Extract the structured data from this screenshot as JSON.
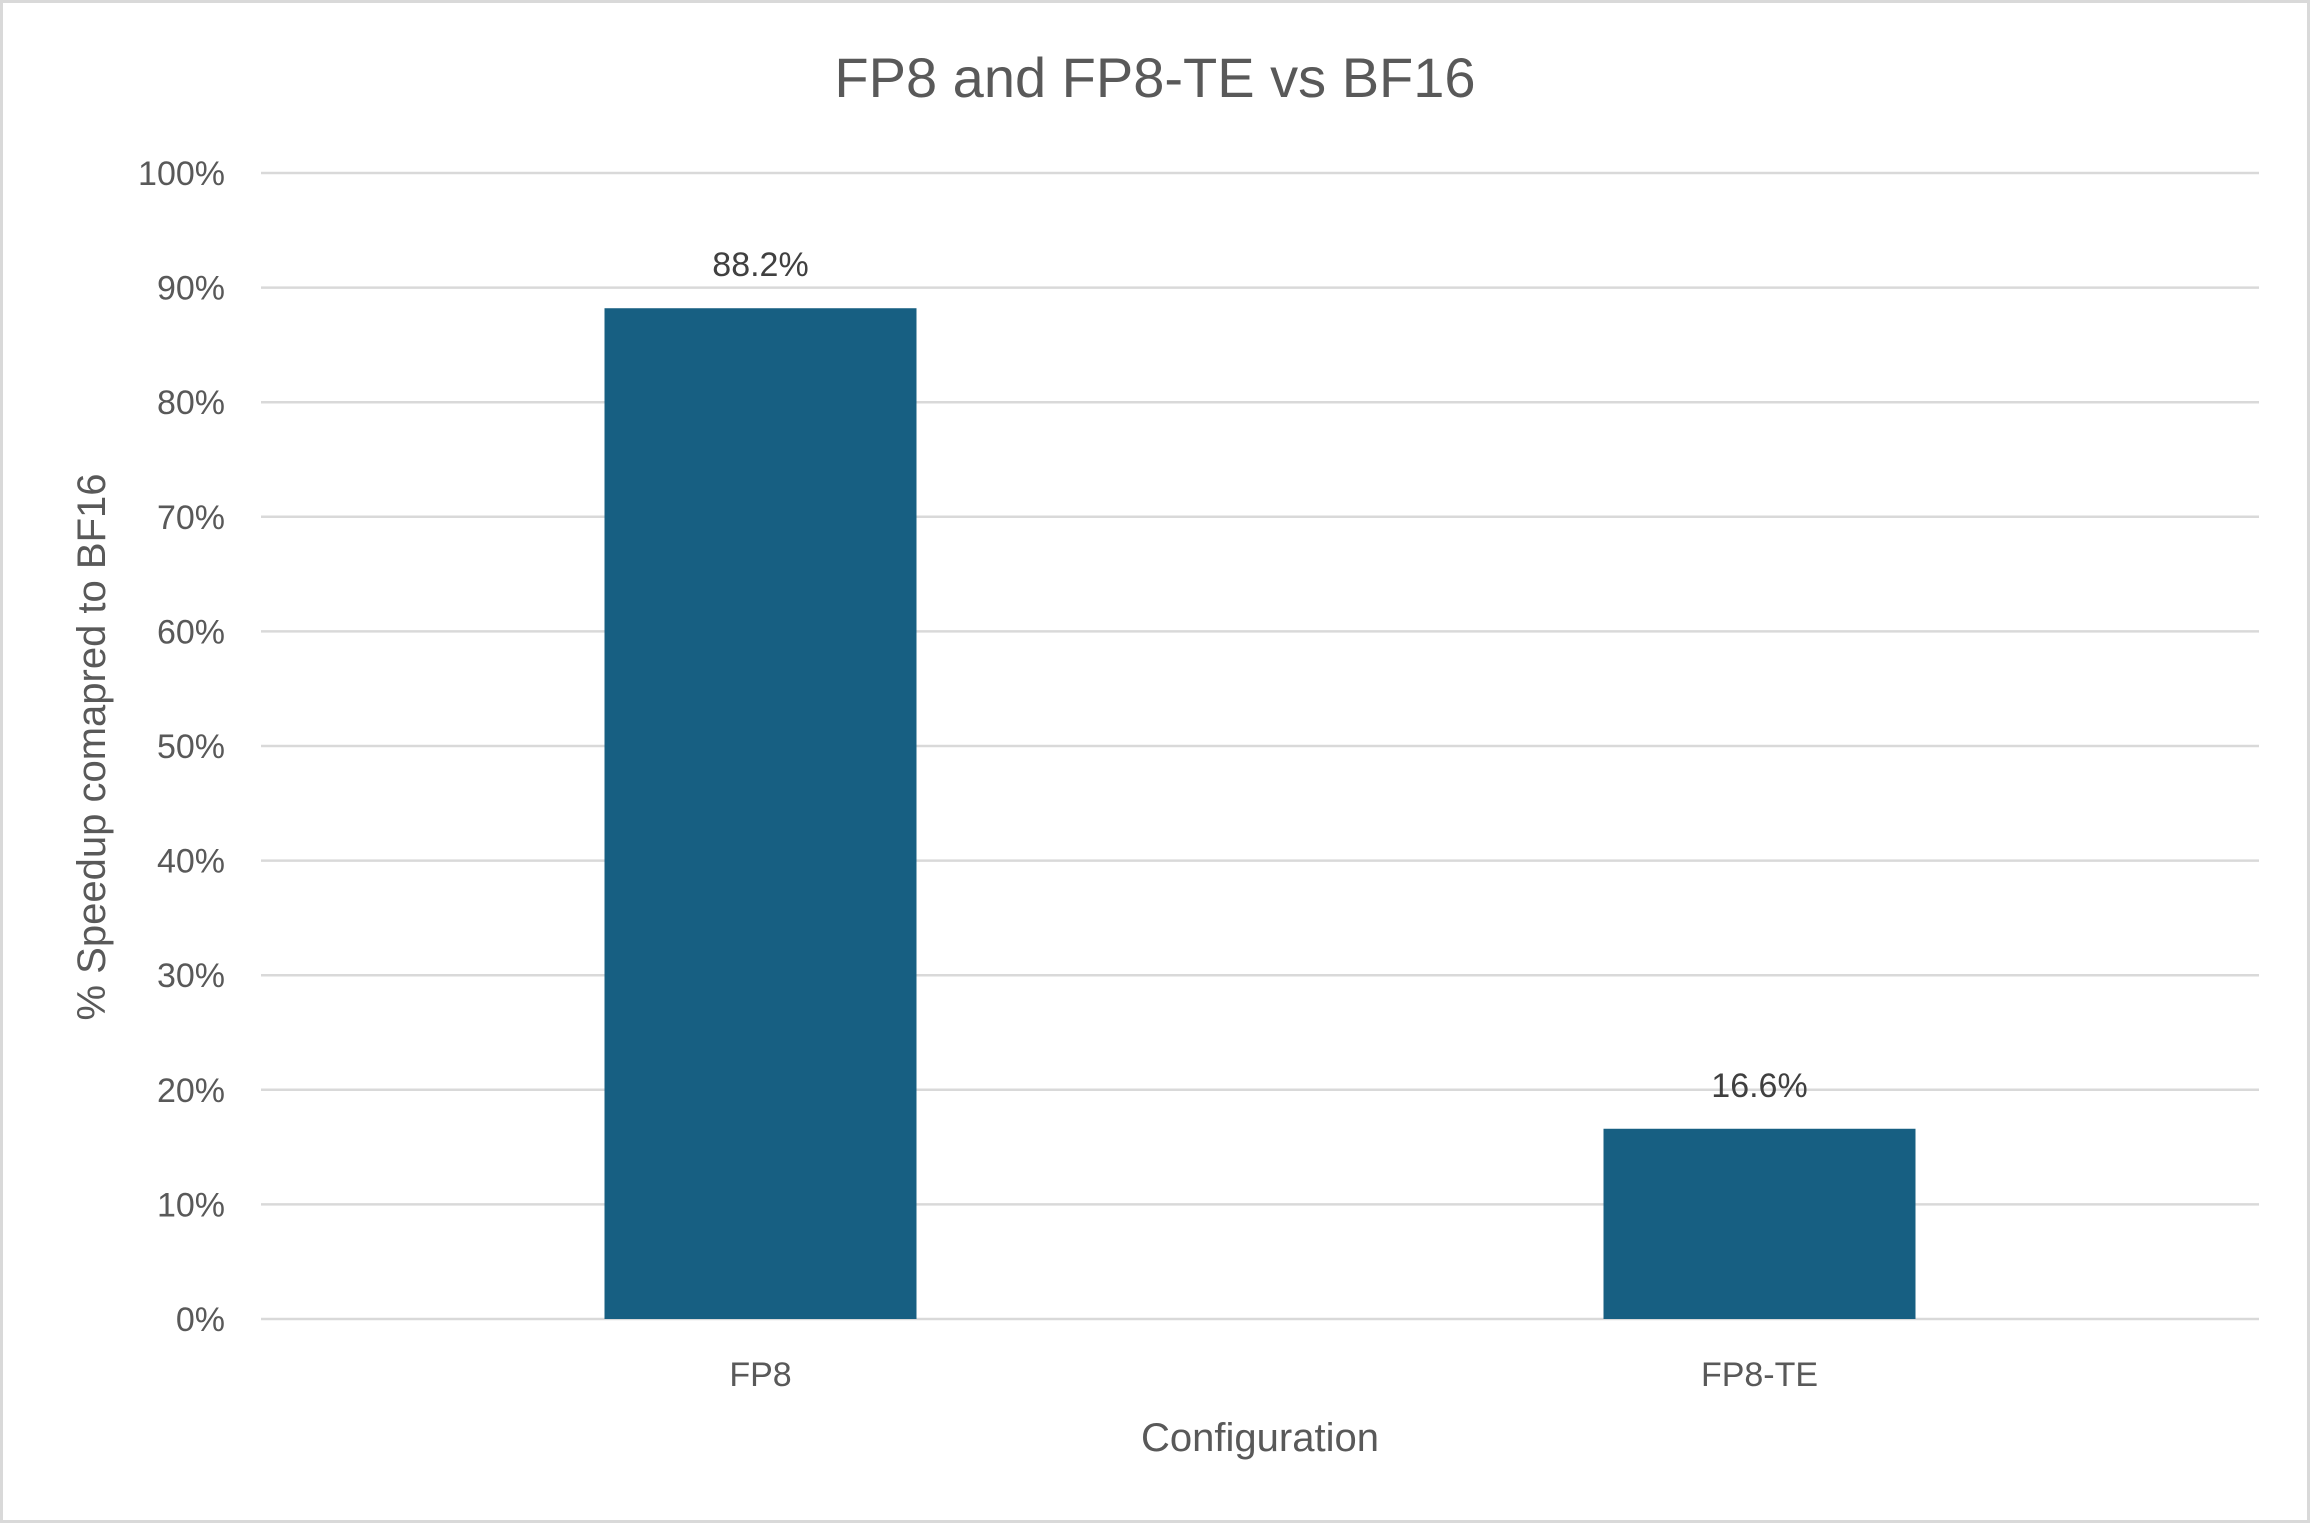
{
  "chart_data": {
    "type": "bar",
    "title": "FP8 and FP8-TE vs BF16",
    "xlabel": "Configuration",
    "ylabel": "% Speedup comapred to BF16",
    "categories": [
      "FP8",
      "FP8-TE"
    ],
    "values": [
      88.2,
      16.6
    ],
    "data_labels": [
      "88.2%",
      "16.6%"
    ],
    "ylim": [
      0,
      100
    ],
    "yticks": [
      0,
      10,
      20,
      30,
      40,
      50,
      60,
      70,
      80,
      90,
      100
    ],
    "ytick_labels": [
      "0%",
      "10%",
      "20%",
      "30%",
      "40%",
      "50%",
      "60%",
      "70%",
      "80%",
      "90%",
      "100%"
    ],
    "grid": true,
    "legend": "none",
    "bar_color": "#175f82"
  }
}
